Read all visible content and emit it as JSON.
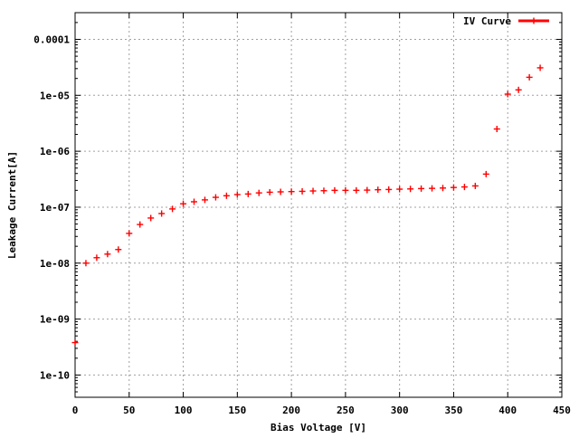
{
  "chart_data": {
    "type": "scatter",
    "title": "",
    "xlabel": "Bias Voltage [V]",
    "ylabel": "Leakage Current[A]",
    "xlim": [
      0,
      450
    ],
    "ylim": [
      4e-11,
      0.0003
    ],
    "y_scale": "log",
    "grid": true,
    "legend_position": "top-right",
    "x_ticks": [
      0,
      50,
      100,
      150,
      200,
      250,
      300,
      350,
      400,
      450
    ],
    "x_tick_labels": [
      "0",
      "50",
      "100",
      "150",
      "200",
      "250",
      "300",
      "350",
      "400",
      "450"
    ],
    "y_ticks": [
      1e-10,
      1e-09,
      1e-08,
      1e-07,
      1e-06,
      1e-05,
      0.0001
    ],
    "y_tick_labels": [
      "1e-10",
      "1e-09",
      "1e-08",
      "1e-07",
      "1e-06",
      "1e-05",
      "0.0001"
    ],
    "series": [
      {
        "name": "IV Curve",
        "color": "#ff0000",
        "marker": "plus",
        "x": [
          0,
          10,
          20,
          30,
          40,
          50,
          60,
          70,
          80,
          90,
          100,
          110,
          120,
          130,
          140,
          150,
          160,
          170,
          180,
          190,
          200,
          210,
          220,
          230,
          240,
          250,
          260,
          270,
          280,
          290,
          300,
          310,
          320,
          330,
          340,
          350,
          360,
          370,
          380,
          390,
          400,
          410,
          420,
          430
        ],
        "y": [
          3.8e-10,
          1e-08,
          1.25e-08,
          1.45e-08,
          1.75e-08,
          3.4e-08,
          4.9e-08,
          6.4e-08,
          7.7e-08,
          9.3e-08,
          1.15e-07,
          1.25e-07,
          1.35e-07,
          1.5e-07,
          1.6e-07,
          1.68e-07,
          1.72e-07,
          1.8e-07,
          1.85e-07,
          1.88e-07,
          1.9e-07,
          1.92e-07,
          1.95e-07,
          1.97e-07,
          2e-07,
          2e-07,
          2e-07,
          2.02e-07,
          2.05e-07,
          2.07e-07,
          2.1e-07,
          2.12e-07,
          2.15e-07,
          2.17e-07,
          2.2e-07,
          2.25e-07,
          2.3e-07,
          2.4e-07,
          3.9e-07,
          2.5e-06,
          1.05e-05,
          1.25e-05,
          2.1e-05,
          3.1e-05
        ]
      }
    ]
  }
}
